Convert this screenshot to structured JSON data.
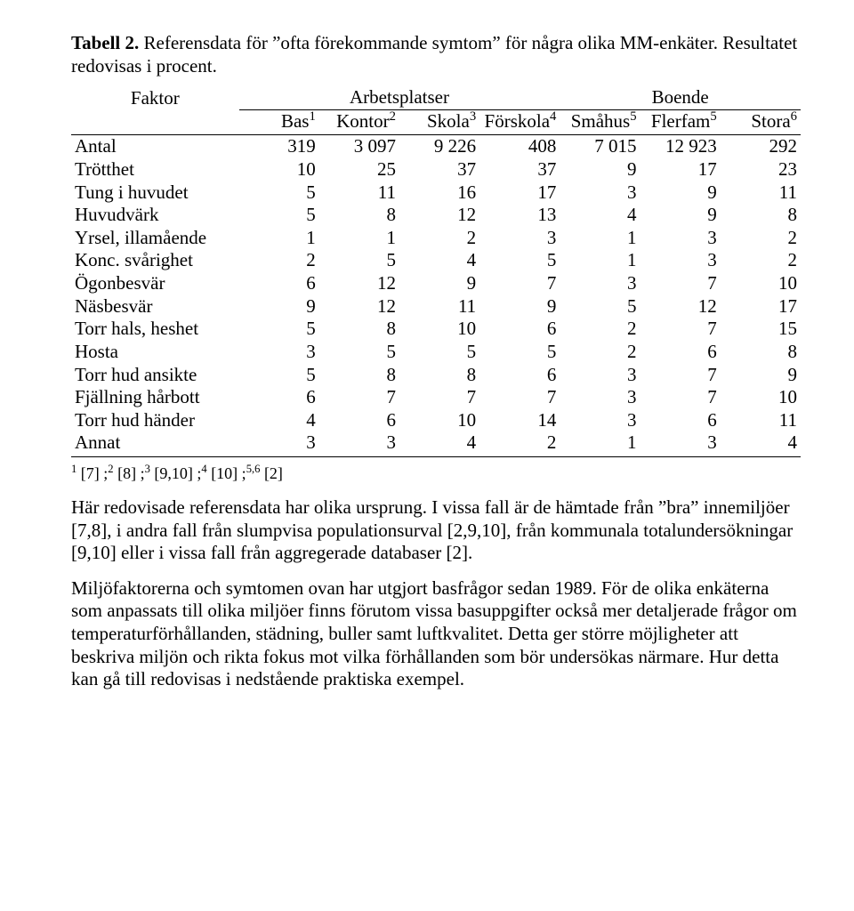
{
  "caption": {
    "lead": "Tabell 2.",
    "rest": " Referensdata för ”ofta förekommande symtom” för några olika MM-enkäter. Resultatet redovisas i procent."
  },
  "table": {
    "factor_label": "Faktor",
    "groups": {
      "arbetsplatser": "Arbetsplatser",
      "boende": "Boende"
    },
    "subheaders": [
      "Bas",
      "Kontor",
      "Skola",
      "Förskola",
      "Småhus",
      "Flerfam",
      "Stora"
    ],
    "super": [
      "1",
      "2",
      "3",
      "4",
      "5",
      "5",
      "6"
    ],
    "rows": [
      {
        "label": "Antal",
        "v": [
          "319",
          "3 097",
          "9 226",
          "408",
          "7 015",
          "12 923",
          "292"
        ]
      },
      {
        "label": "Trötthet",
        "v": [
          "10",
          "25",
          "37",
          "37",
          "9",
          "17",
          "23"
        ]
      },
      {
        "label": "Tung i huvudet",
        "v": [
          "5",
          "11",
          "16",
          "17",
          "3",
          "9",
          "11"
        ]
      },
      {
        "label": "Huvudvärk",
        "v": [
          "5",
          "8",
          "12",
          "13",
          "4",
          "9",
          "8"
        ]
      },
      {
        "label": "Yrsel, illamående",
        "v": [
          "1",
          "1",
          "2",
          "3",
          "1",
          "3",
          "2"
        ]
      },
      {
        "label": "Konc. svårighet",
        "v": [
          "2",
          "5",
          "4",
          "5",
          "1",
          "3",
          "2"
        ]
      },
      {
        "label": "Ögonbesvär",
        "v": [
          "6",
          "12",
          "9",
          "7",
          "3",
          "7",
          "10"
        ]
      },
      {
        "label": "Näsbesvär",
        "v": [
          "9",
          "12",
          "11",
          "9",
          "5",
          "12",
          "17"
        ]
      },
      {
        "label": "Torr hals, heshet",
        "v": [
          "5",
          "8",
          "10",
          "6",
          "2",
          "7",
          "15"
        ]
      },
      {
        "label": "Hosta",
        "v": [
          "3",
          "5",
          "5",
          "5",
          "2",
          "6",
          "8"
        ]
      },
      {
        "label": "Torr hud ansikte",
        "v": [
          "5",
          "8",
          "8",
          "6",
          "3",
          "7",
          "9"
        ]
      },
      {
        "label": "Fjällning hårbott",
        "v": [
          "6",
          "7",
          "7",
          "7",
          "3",
          "7",
          "10"
        ]
      },
      {
        "label": "Torr hud händer",
        "v": [
          "4",
          "6",
          "10",
          "14",
          "3",
          "6",
          "11"
        ]
      },
      {
        "label": "Annat",
        "v": [
          "3",
          "3",
          "4",
          "2",
          "1",
          "3",
          "4"
        ]
      }
    ]
  },
  "footnote": {
    "parts": [
      {
        "sup": "1",
        "txt": " [7] ;"
      },
      {
        "sup": "2",
        "txt": " [8] ;"
      },
      {
        "sup": "3",
        "txt": " [9,10] ;"
      },
      {
        "sup": "4",
        "txt": " [10] ;"
      },
      {
        "sup": "5,6",
        "txt": " [2]"
      }
    ]
  },
  "paragraphs": {
    "p1": "Här redovisade referensdata har olika ursprung. I vissa fall är de hämtade från ”bra” innemiljöer [7,8], i andra fall från slumpvisa populationsurval [2,9,10], från kommunala totalundersökningar [9,10] eller i vissa fall från aggregerade databaser [2].",
    "p2": "Miljöfaktorerna och symtomen ovan har utgjort basfrågor sedan 1989. För de olika enkäterna som anpassats till olika miljöer finns förutom vissa bas­uppgifter också mer detaljerade frågor om temperaturförhållanden, städ­ning, buller samt luftkvalitet. Detta ger större möjligheter att beskriva mil­jön och rikta fokus mot vilka förhållanden som bör undersökas närmare. Hur detta kan gå till redovisas i nedstående praktiska exempel."
  }
}
